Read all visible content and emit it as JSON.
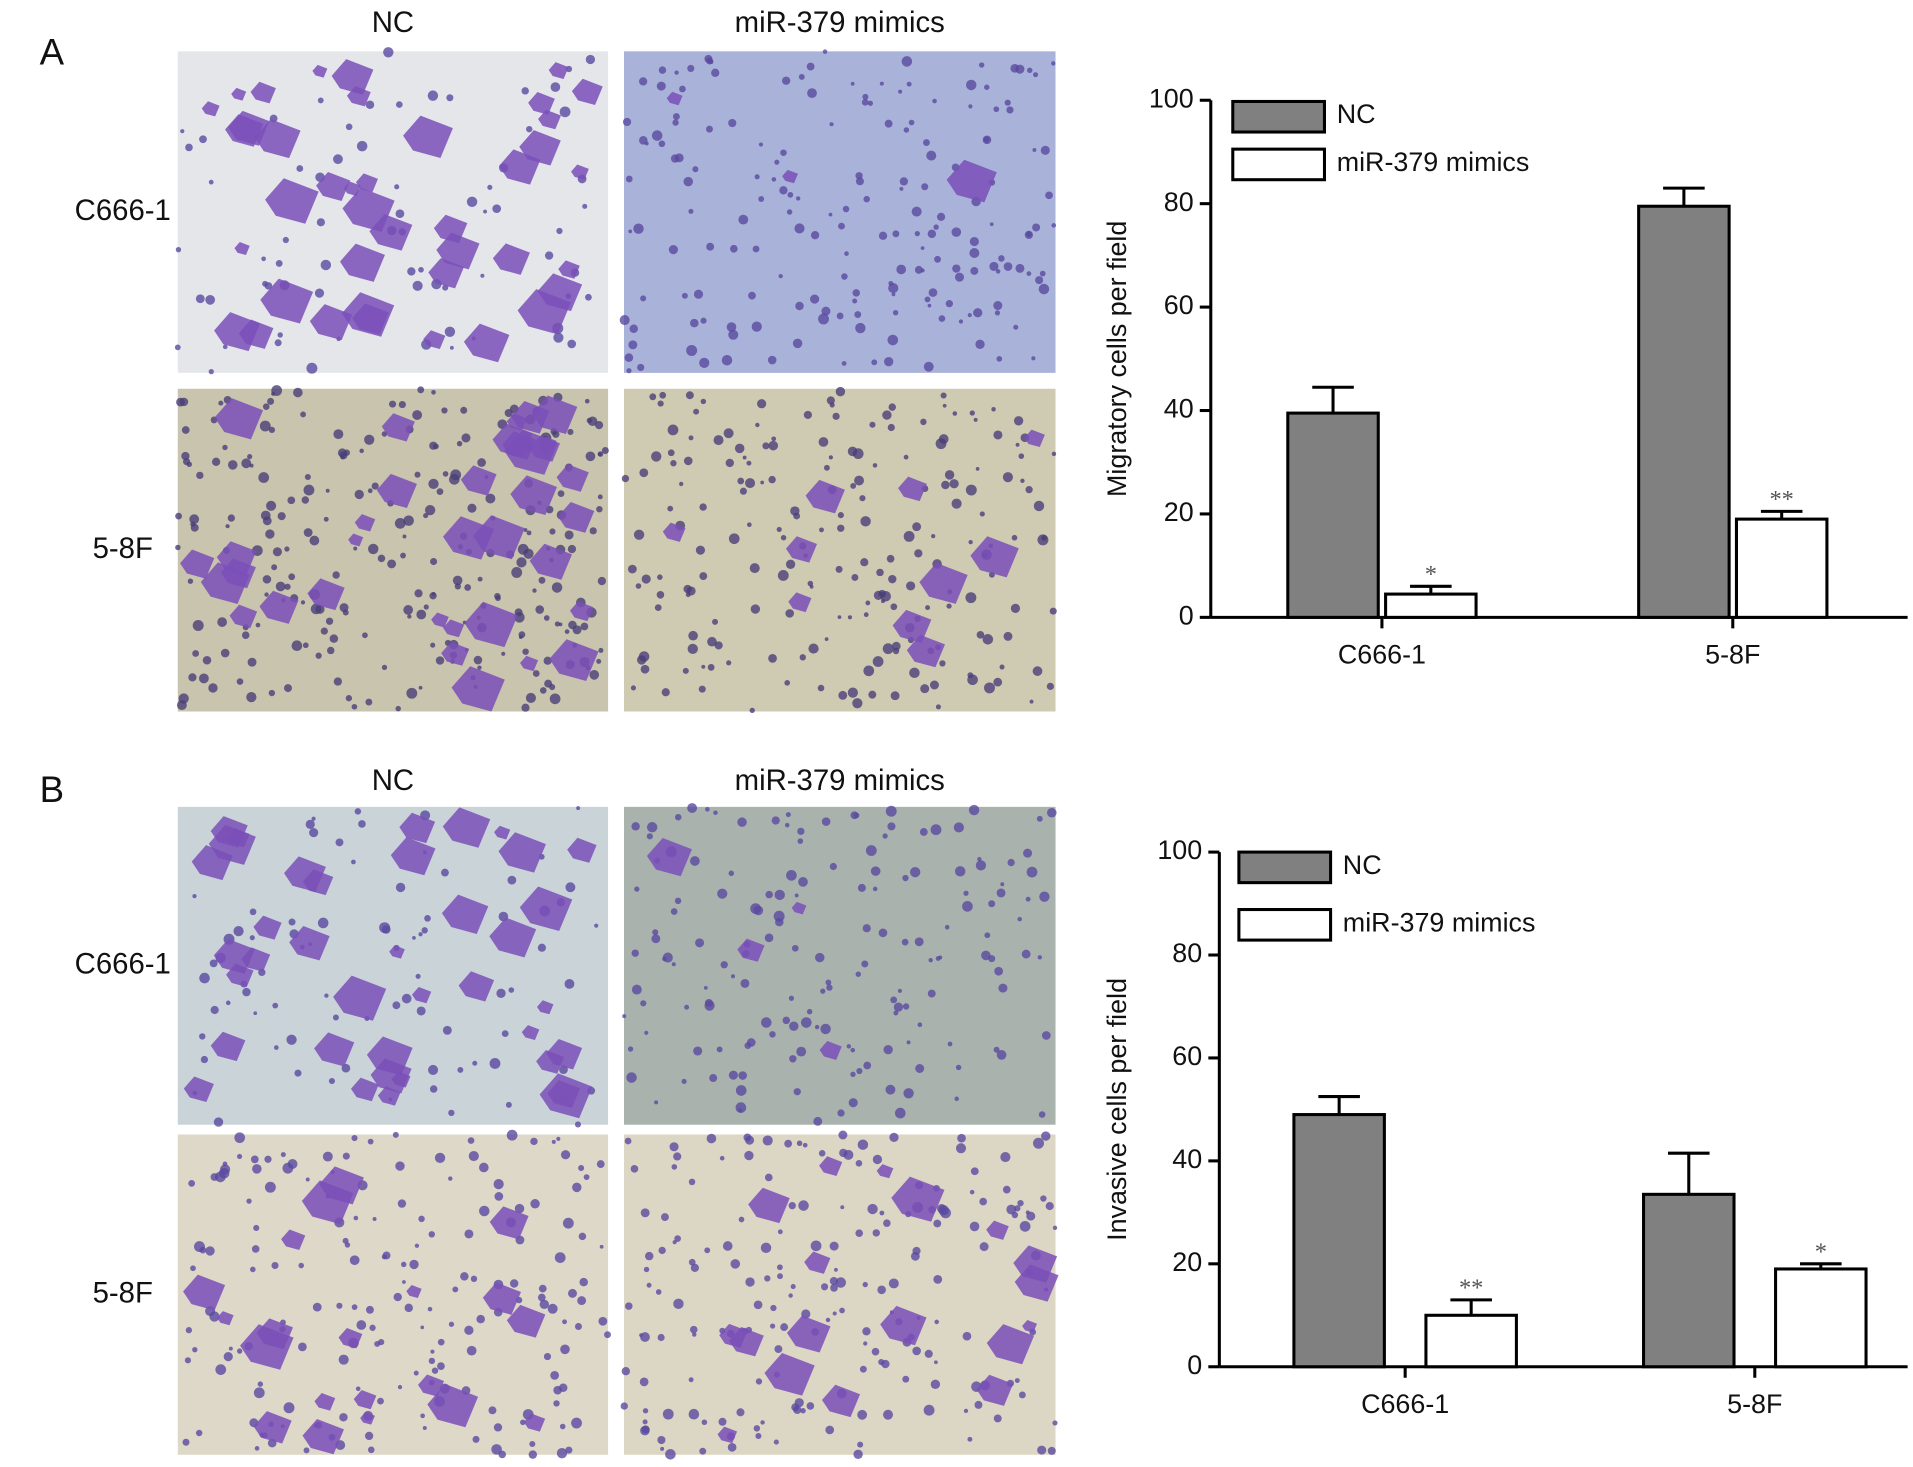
{
  "figure": {
    "panels": [
      {
        "letter": "A",
        "columns": [
          "NC",
          "miR-379 mimics"
        ],
        "rows": [
          "C666-1",
          "5-8F"
        ]
      },
      {
        "letter": "B",
        "columns": [
          "NC",
          "miR-379 mimics"
        ],
        "rows": [
          "C666-1",
          "5-8F"
        ]
      }
    ]
  },
  "chart_data": [
    {
      "type": "bar",
      "y_label": "Migratory cells per field",
      "categories": [
        "C666-1",
        "5-8F"
      ],
      "series": [
        {
          "name": "NC",
          "color": "#808080",
          "values": [
            39.5,
            79.5
          ],
          "errors": [
            5,
            3.5
          ]
        },
        {
          "name": "miR-379 mimics",
          "color": "#ffffff",
          "values": [
            4.5,
            19
          ],
          "errors": [
            1.5,
            1.5
          ],
          "annotations": [
            "*",
            "**"
          ]
        }
      ],
      "ylim": [
        0,
        100
      ],
      "yticks": [
        0,
        20,
        40,
        60,
        80,
        100
      ],
      "legend": "top-left"
    },
    {
      "type": "bar",
      "y_label": "Invasive cells per field",
      "categories": [
        "C666-1",
        "5-8F"
      ],
      "series": [
        {
          "name": "NC",
          "color": "#808080",
          "values": [
            49,
            33.5
          ],
          "errors": [
            3.5,
            8
          ]
        },
        {
          "name": "miR-379 mimics",
          "color": "#ffffff",
          "values": [
            10,
            19
          ],
          "errors": [
            3,
            1
          ],
          "annotations": [
            "**",
            "*"
          ]
        }
      ],
      "ylim": [
        0,
        100
      ],
      "yticks": [
        0,
        20,
        40,
        60,
        80,
        100
      ],
      "legend": "top-left"
    }
  ]
}
